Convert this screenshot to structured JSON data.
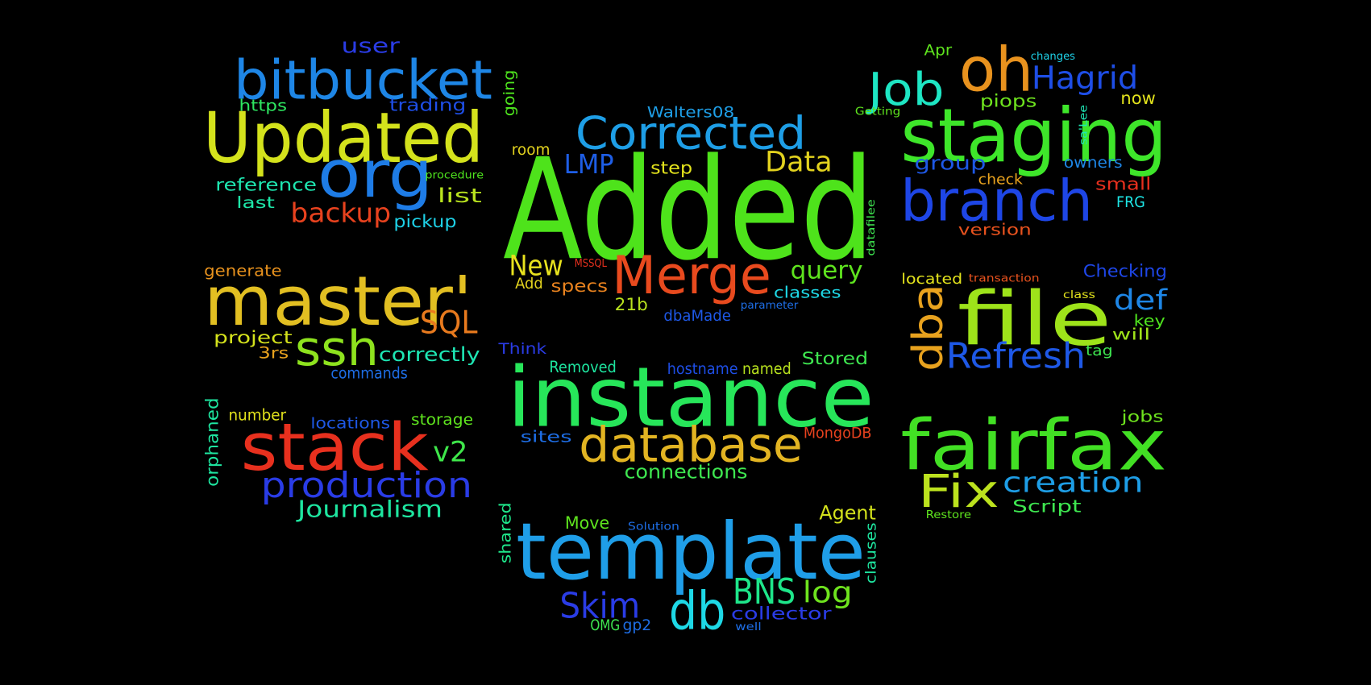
{
  "words": [
    {
      "text": "Added",
      "color": "#4ee31b"
    },
    {
      "text": "instance",
      "color": "#27e65a"
    },
    {
      "text": "template",
      "color": "#1f9ee8"
    },
    {
      "text": "staging",
      "color": "#3ee62a"
    },
    {
      "text": "Updated",
      "color": "#d4e21c"
    },
    {
      "text": "fairfax",
      "color": "#42e024"
    },
    {
      "text": "master'",
      "color": "#e2bf22"
    },
    {
      "text": "file",
      "color": "#9ee31a"
    },
    {
      "text": "bitbucket",
      "color": "#1e86e6"
    },
    {
      "text": "org",
      "color": "#1e7ce6"
    },
    {
      "text": "stack",
      "color": "#e8301e"
    },
    {
      "text": "branch",
      "color": "#1e46e6"
    },
    {
      "text": "Merge",
      "color": "#e84a1e"
    },
    {
      "text": "database",
      "color": "#e2b422"
    },
    {
      "text": "Corrected",
      "color": "#1e9ee6"
    },
    {
      "text": "oh",
      "color": "#e8921e"
    },
    {
      "text": "Job",
      "color": "#1ee6c4"
    },
    {
      "text": "db",
      "color": "#1ed8e6"
    },
    {
      "text": "ssh",
      "color": "#8ee31e"
    },
    {
      "text": "production",
      "color": "#2a3ce6"
    },
    {
      "text": "Fix",
      "color": "#bce21e"
    },
    {
      "text": "dba",
      "color": "#e8a21e"
    },
    {
      "text": "Refresh",
      "color": "#1e58e6"
    },
    {
      "text": "Hagrid",
      "color": "#1e4ee6"
    },
    {
      "text": "Skim",
      "color": "#2a3ce6"
    },
    {
      "text": "BNS",
      "color": "#1ee68a"
    },
    {
      "text": "SQL",
      "color": "#e87a1e"
    },
    {
      "text": "backup",
      "color": "#e8421e"
    },
    {
      "text": "Data",
      "color": "#e2d21e"
    },
    {
      "text": "New",
      "color": "#e8e21e"
    },
    {
      "text": "LMP",
      "color": "#1e5ee6"
    },
    {
      "text": "creation",
      "color": "#1e9ee6"
    },
    {
      "text": "Journalism",
      "color": "#1ee6a0"
    },
    {
      "text": "log",
      "color": "#6ee31e"
    },
    {
      "text": "query",
      "color": "#5ee31e"
    },
    {
      "text": "v2",
      "color": "#3ee64a"
    },
    {
      "text": "def",
      "color": "#1e86e6"
    },
    {
      "text": "connections",
      "color": "#3ee650"
    },
    {
      "text": "user",
      "color": "#2a3ce6"
    },
    {
      "text": "trading",
      "color": "#1e4ee6"
    },
    {
      "text": "https",
      "color": "#2ee660"
    },
    {
      "text": "reference",
      "color": "#1ee6b0"
    },
    {
      "text": "last",
      "color": "#1ee6a8"
    },
    {
      "text": "list",
      "color": "#b8e21e"
    },
    {
      "text": "pickup",
      "color": "#1ed0e6"
    },
    {
      "text": "procedure",
      "color": "#4ee31e"
    },
    {
      "text": "going",
      "color": "#4ee31e"
    },
    {
      "text": "generate",
      "color": "#e8921e"
    },
    {
      "text": "project",
      "color": "#d4e21c"
    },
    {
      "text": "3rs",
      "color": "#e8a21e"
    },
    {
      "text": "correctly",
      "color": "#1ee6b4"
    },
    {
      "text": "commands",
      "color": "#1e6ee6"
    },
    {
      "text": "orphaned",
      "color": "#1ee6a0"
    },
    {
      "text": "number",
      "color": "#e2e21c"
    },
    {
      "text": "locations",
      "color": "#1e58e6"
    },
    {
      "text": "storage",
      "color": "#5ee31e"
    },
    {
      "text": "Walters08",
      "color": "#1e9ee6"
    },
    {
      "text": "room",
      "color": "#e2d21e"
    },
    {
      "text": "step",
      "color": "#e2e21c"
    },
    {
      "text": "Add",
      "color": "#e2d21e"
    },
    {
      "text": "specs",
      "color": "#e8821e"
    },
    {
      "text": "MSSQL",
      "color": "#e8301e"
    },
    {
      "text": "21b",
      "color": "#b8e21e"
    },
    {
      "text": "dbaMade",
      "color": "#1e58e6"
    },
    {
      "text": "classes",
      "color": "#1ed8e6"
    },
    {
      "text": "parameter",
      "color": "#1e6ee6"
    },
    {
      "text": "datafilee",
      "color": "#3ee650"
    },
    {
      "text": "Think",
      "color": "#2a3ce6"
    },
    {
      "text": "Removed",
      "color": "#1ee6a0"
    },
    {
      "text": "hostname",
      "color": "#1e4ee6"
    },
    {
      "text": "named",
      "color": "#b8e21e"
    },
    {
      "text": "Stored",
      "color": "#3ee650"
    },
    {
      "text": "sites",
      "color": "#1e6ee6"
    },
    {
      "text": "MongoDB",
      "color": "#e8421e"
    },
    {
      "text": "shared",
      "color": "#1ee68a"
    },
    {
      "text": "Move",
      "color": "#5ee31e"
    },
    {
      "text": "Solution",
      "color": "#1e6ee6"
    },
    {
      "text": "Agent",
      "color": "#d4e21c"
    },
    {
      "text": "clauses",
      "color": "#1ee6a0"
    },
    {
      "text": "collector",
      "color": "#2a3ce6"
    },
    {
      "text": "OMG",
      "color": "#3ee650"
    },
    {
      "text": "gp2",
      "color": "#1e6ee6"
    },
    {
      "text": "well",
      "color": "#1e6ee6"
    },
    {
      "text": "Apr",
      "color": "#5ee31e"
    },
    {
      "text": "changes",
      "color": "#1ed0e6"
    },
    {
      "text": "Getting",
      "color": "#5ee31e"
    },
    {
      "text": "piops",
      "color": "#6ee31e"
    },
    {
      "text": "now",
      "color": "#e2e21c"
    },
    {
      "text": "sa'Lee",
      "color": "#1ee6b4"
    },
    {
      "text": "group",
      "color": "#1e58e6"
    },
    {
      "text": "owners",
      "color": "#1e86e6"
    },
    {
      "text": "check",
      "color": "#e8a21e"
    },
    {
      "text": "small",
      "color": "#e8301e"
    },
    {
      "text": "FRG",
      "color": "#1ee6e6"
    },
    {
      "text": "version",
      "color": "#e8521e"
    },
    {
      "text": "located",
      "color": "#e2e21c"
    },
    {
      "text": "transaction",
      "color": "#e8521e"
    },
    {
      "text": "Checking",
      "color": "#1e46e6"
    },
    {
      "text": "class",
      "color": "#e2e21c"
    },
    {
      "text": "key",
      "color": "#4ee31e"
    },
    {
      "text": "will",
      "color": "#9ee31a"
    },
    {
      "text": "tag",
      "color": "#3ee650"
    },
    {
      "text": "jobs",
      "color": "#6ee31e"
    },
    {
      "text": "Script",
      "color": "#3ee650"
    },
    {
      "text": "Restore",
      "color": "#5ee31e"
    }
  ]
}
